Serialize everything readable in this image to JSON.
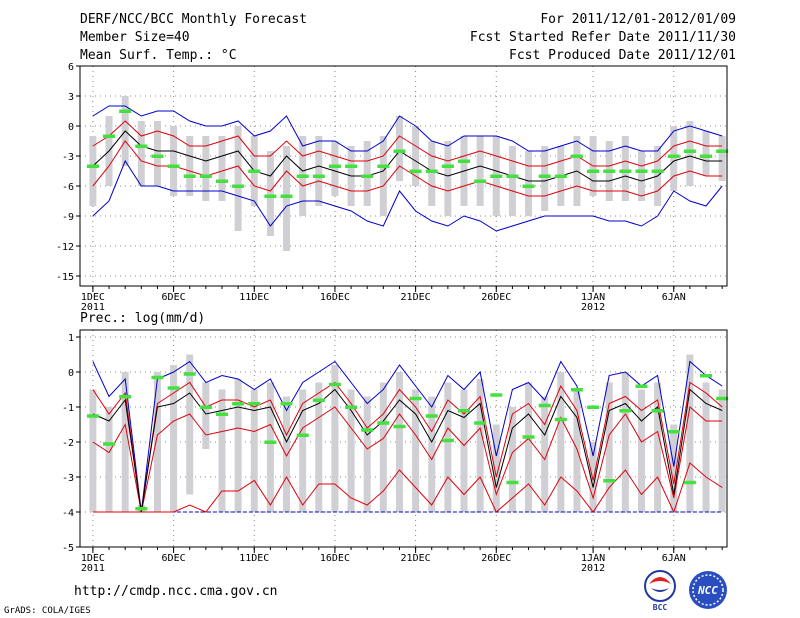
{
  "header": {
    "title": "DERF/NCC/BCC Monthly Forecast",
    "member_size": "Member Size=40",
    "variable": "Mean Surf. Temp.: °C",
    "period": "For 2011/12/01-2012/01/09",
    "started": "Fcst Started Refer Date 2011/11/30",
    "produced": "Fcst Produced Date 2011/12/01"
  },
  "footer": {
    "url": "http://cmdp.ncc.cma.gov.cn",
    "grads": "GrADS: COLA/IGES",
    "logo_left": "BCC",
    "logo_right": "NCC"
  },
  "colors": {
    "box": "#d0d0d4",
    "median": "#000000",
    "inner": "#e0000a",
    "outer": "#0000cc",
    "obs": "#44e040",
    "grid": "#888888"
  },
  "chart_data": [
    {
      "type": "box",
      "title": "Mean Surf. Temp.: °C",
      "xlabel_ticks": [
        {
          "day": 1,
          "label": "1DEC",
          "sub": "2011"
        },
        {
          "day": 6,
          "label": "6DEC",
          "sub": ""
        },
        {
          "day": 11,
          "label": "11DEC",
          "sub": ""
        },
        {
          "day": 16,
          "label": "16DEC",
          "sub": ""
        },
        {
          "day": 21,
          "label": "21DEC",
          "sub": ""
        },
        {
          "day": 26,
          "label": "26DEC",
          "sub": ""
        },
        {
          "day": 32,
          "label": "1JAN",
          "sub": "2012"
        },
        {
          "day": 37,
          "label": "6JAN",
          "sub": ""
        }
      ],
      "xlim": [
        0.2,
        40.3
      ],
      "ylim": [
        -16,
        6
      ],
      "yticks": [
        6,
        3,
        0,
        -3,
        -6,
        -9,
        -12,
        -15
      ],
      "days": [
        1,
        2,
        3,
        4,
        5,
        6,
        7,
        8,
        9,
        10,
        11,
        12,
        13,
        14,
        15,
        16,
        17,
        18,
        19,
        20,
        21,
        22,
        23,
        24,
        25,
        26,
        27,
        28,
        29,
        30,
        31,
        32,
        33,
        34,
        35,
        36,
        37,
        38,
        39,
        40
      ],
      "box_low": [
        -8,
        -6,
        -4,
        -6,
        -6,
        -7,
        -7,
        -7.5,
        -7.5,
        -10.5,
        -8,
        -11,
        -12.5,
        -9,
        -8,
        -7,
        -8,
        -8,
        -9,
        -5.5,
        -6,
        -8,
        -9,
        -8,
        -8,
        -9,
        -9,
        -9,
        -8.5,
        -8,
        -8,
        -7,
        -7.5,
        -7.5,
        -7.5,
        -8,
        -6.5,
        -6,
        -5,
        -5.5
      ],
      "box_high": [
        -1,
        1,
        3,
        0.5,
        0.5,
        0,
        -1,
        -1,
        -1,
        0,
        -1,
        -2.5,
        -2,
        -1,
        -1,
        -1.5,
        -2,
        -1.5,
        -1,
        1,
        0,
        -1.5,
        -1.5,
        -1,
        -1,
        -1,
        -2,
        -2.5,
        -2,
        -2,
        -1,
        -1,
        -1.5,
        -1,
        -2.5,
        -2,
        0,
        0.5,
        -0.5,
        -1
      ],
      "upper_outer": [
        1,
        2,
        2,
        1,
        1.5,
        1.5,
        0.5,
        0,
        0,
        0.5,
        -1,
        -0.5,
        1,
        -2,
        -1.5,
        -1.5,
        -2.5,
        -2.5,
        -1.5,
        1,
        0,
        -1.5,
        -2,
        -1,
        -1,
        -1,
        -1.5,
        -2.5,
        -2.5,
        -2,
        -1.5,
        -2.5,
        -2.5,
        -2,
        -2.5,
        -2.5,
        -0.5,
        0,
        -0.5,
        -1
      ],
      "upper_inner": [
        -2,
        -1,
        0.5,
        -1,
        -0.5,
        -1,
        -2,
        -2,
        -1.5,
        -1,
        -3,
        -3,
        -1.5,
        -3,
        -2.5,
        -3,
        -3.5,
        -3.5,
        -3,
        -1,
        -2,
        -3,
        -3.5,
        -3,
        -2.5,
        -3,
        -3.5,
        -4,
        -4,
        -3.5,
        -3,
        -4,
        -4,
        -3.5,
        -4,
        -3.5,
        -2,
        -1.5,
        -2,
        -2
      ],
      "median": [
        -4,
        -2.5,
        -0.5,
        -2,
        -2.5,
        -2.5,
        -3,
        -3.5,
        -3,
        -2.5,
        -4.5,
        -5,
        -3,
        -4.5,
        -4,
        -4.5,
        -5,
        -5,
        -4.5,
        -2.5,
        -3.5,
        -4.5,
        -5,
        -4.5,
        -4,
        -4.5,
        -5,
        -5.5,
        -5.5,
        -5,
        -4.5,
        -5.5,
        -5.5,
        -5,
        -5.5,
        -5,
        -3.5,
        -3,
        -3.5,
        -3.5
      ],
      "lower_inner": [
        -6,
        -4,
        -1.5,
        -3.5,
        -4,
        -4,
        -4.5,
        -5,
        -4.5,
        -4,
        -6,
        -6.5,
        -4.5,
        -6,
        -5.5,
        -6,
        -6.5,
        -6.5,
        -6,
        -4,
        -5,
        -6,
        -6.5,
        -6,
        -5.5,
        -6,
        -6.5,
        -7,
        -7,
        -6.5,
        -6,
        -6.5,
        -6.5,
        -6.5,
        -7,
        -6.5,
        -5,
        -4.5,
        -5,
        -5
      ],
      "lower_outer": [
        -9,
        -7.5,
        -3.5,
        -6,
        -6,
        -6.5,
        -6.5,
        -6.5,
        -6.5,
        -7,
        -7.5,
        -10,
        -8,
        -7.5,
        -7.5,
        -8,
        -8.5,
        -9.5,
        -10,
        -6.5,
        -8.5,
        -9.5,
        -10,
        -9,
        -9.5,
        -10.5,
        -10,
        -9.5,
        -9,
        -9,
        -9,
        -9,
        -9.5,
        -9.5,
        -10,
        -9,
        -6.5,
        -7.5,
        -8,
        -6
      ],
      "observed": [
        -4,
        -1,
        1.5,
        -2,
        -3,
        -4,
        -5,
        -5,
        -5.5,
        -6,
        -4.5,
        -7,
        -7,
        -5,
        -5,
        -4,
        -4,
        -5,
        -4,
        -2.5,
        -4.5,
        -4.5,
        -4,
        -3.5,
        -5.5,
        -5,
        -5,
        -6,
        -5,
        -5,
        -3,
        -4.5,
        -4.5,
        -4.5,
        -4.5,
        -4.5,
        -3,
        -2.5,
        -3,
        -2.5
      ]
    },
    {
      "type": "box",
      "title": "Prec.: log(mm/d)",
      "xlabel_ticks": [
        {
          "day": 1,
          "label": "1DEC",
          "sub": "2011"
        },
        {
          "day": 6,
          "label": "6DEC",
          "sub": ""
        },
        {
          "day": 11,
          "label": "11DEC",
          "sub": ""
        },
        {
          "day": 16,
          "label": "16DEC",
          "sub": ""
        },
        {
          "day": 21,
          "label": "21DEC",
          "sub": ""
        },
        {
          "day": 26,
          "label": "26DEC",
          "sub": ""
        },
        {
          "day": 32,
          "label": "1JAN",
          "sub": "2012"
        },
        {
          "day": 37,
          "label": "6JAN",
          "sub": ""
        }
      ],
      "xlim": [
        0.2,
        40.3
      ],
      "ylim": [
        -5,
        1.2
      ],
      "yticks": [
        1,
        0,
        -1,
        -2,
        -3,
        -4,
        -5
      ],
      "days": [
        1,
        2,
        3,
        4,
        5,
        6,
        7,
        8,
        9,
        10,
        11,
        12,
        13,
        14,
        15,
        16,
        17,
        18,
        19,
        20,
        21,
        22,
        23,
        24,
        25,
        26,
        27,
        28,
        29,
        30,
        31,
        32,
        33,
        34,
        35,
        36,
        37,
        38,
        39,
        40
      ],
      "box_low": [
        -4,
        -4,
        -4,
        -4,
        -4,
        -4,
        -3.5,
        -2.2,
        -4,
        -4,
        -4,
        -4,
        -4,
        -4,
        -4,
        -4,
        -4,
        -4,
        -4,
        -4,
        -4,
        -4,
        -4,
        -4,
        -4,
        -4,
        -4,
        -4,
        -4,
        -4,
        -4,
        -4,
        -4,
        -4,
        -4,
        -4,
        -4,
        -4,
        -4,
        -4
      ],
      "box_high": [
        -0.5,
        -1,
        0,
        -3.8,
        0,
        0.2,
        0.5,
        -0.3,
        -0.5,
        -0.2,
        -0.5,
        -0.3,
        -0.7,
        -0.5,
        -0.3,
        0.2,
        -0.5,
        -0.7,
        -0.3,
        0,
        -0.5,
        -0.7,
        -0.3,
        -0.5,
        -0.2,
        -1.5,
        -1,
        -0.3,
        -0.7,
        0,
        -0.5,
        -2,
        -0.3,
        0,
        -0.5,
        -0.3,
        -1.5,
        0.5,
        -0.3,
        -0.5
      ],
      "upper_outer": [
        0.3,
        -0.7,
        -0.2,
        -4,
        -0.2,
        0,
        0.3,
        -0.3,
        -0.1,
        -0.2,
        -0.5,
        -0.2,
        -1.1,
        -0.3,
        0,
        0.3,
        -0.3,
        -0.9,
        -0.5,
        0.2,
        -0.4,
        -1,
        -0.1,
        -0.5,
        0,
        -2.4,
        -0.5,
        -0.3,
        -0.8,
        0.3,
        -0.4,
        -2.4,
        -0.1,
        0,
        -0.4,
        -0.1,
        -2.7,
        0.3,
        -0.1,
        -0.4
      ],
      "upper_inner": [
        -0.5,
        -1.2,
        -0.6,
        -4,
        -0.9,
        -0.6,
        -0.3,
        -1,
        -0.8,
        -0.8,
        -1,
        -0.8,
        -1.8,
        -0.9,
        -0.6,
        -0.3,
        -0.9,
        -1.6,
        -1.2,
        -0.5,
        -1,
        -1.7,
        -0.8,
        -1.2,
        -0.7,
        -3,
        -1.2,
        -0.9,
        -1.5,
        -0.4,
        -1.1,
        -3.1,
        -0.9,
        -0.7,
        -1.1,
        -0.8,
        -3.2,
        -0.3,
        -0.6,
        -1
      ],
      "median": [
        -1.2,
        -1.4,
        -0.8,
        -4,
        -1,
        -0.9,
        -0.6,
        -1.2,
        -1.1,
        -1,
        -1.1,
        -1,
        -2,
        -1.1,
        -0.9,
        -0.5,
        -1.1,
        -1.8,
        -1.4,
        -0.8,
        -1.2,
        -2,
        -1.1,
        -1.3,
        -0.9,
        -3.3,
        -1.6,
        -1.2,
        -1.8,
        -0.7,
        -1.3,
        -3.3,
        -1.1,
        -0.9,
        -1.4,
        -1,
        -3.5,
        -0.5,
        -0.9,
        -1.1
      ],
      "lower_inner": [
        -2,
        -2.3,
        -1.5,
        -4,
        -1.8,
        -1.4,
        -1.2,
        -1.8,
        -1.7,
        -1.6,
        -1.7,
        -1.5,
        -2.4,
        -1.6,
        -1.3,
        -1,
        -1.6,
        -2.2,
        -1.9,
        -1.2,
        -1.8,
        -2.5,
        -1.6,
        -2.1,
        -1.6,
        -3.5,
        -2.3,
        -1.9,
        -2.5,
        -1.3,
        -2.2,
        -3.6,
        -1.8,
        -1.2,
        -2,
        -1.7,
        -3.6,
        -1,
        -1.4,
        -1.4
      ],
      "lower_outer": [
        -4,
        -4,
        -4,
        -4,
        -4,
        -4,
        -3.8,
        -4,
        -3.4,
        -3.4,
        -3.1,
        -3.8,
        -3,
        -3.8,
        -3.2,
        -3.2,
        -3.6,
        -3.8,
        -3.4,
        -2.8,
        -3.3,
        -3.8,
        -3,
        -3.5,
        -3,
        -4,
        -3.6,
        -3.2,
        -3.8,
        -3,
        -3.4,
        -4,
        -3.3,
        -2.8,
        -3.5,
        -3,
        -4,
        -2.6,
        -3,
        -3.3
      ],
      "bottom_line": [
        -4,
        -4,
        -4,
        -4,
        -4,
        -4,
        -4,
        -4,
        -4,
        -4,
        -4,
        -4,
        -4,
        -4,
        -4,
        -4,
        -4,
        -4,
        -4,
        -4,
        -4,
        -4,
        -4,
        -4,
        -4,
        -4,
        -4,
        -4,
        -4,
        -4,
        -4,
        -4,
        -4,
        -4,
        -4,
        -4,
        -4,
        -4,
        -4,
        -4
      ],
      "observed": [
        -1.25,
        -2.05,
        -0.7,
        -3.9,
        -0.15,
        -0.45,
        -0.05,
        -1,
        -1.2,
        -0.9,
        -0.9,
        -2,
        -0.9,
        -1.8,
        -0.8,
        -0.35,
        -1,
        -1.65,
        -1.45,
        -1.55,
        -0.75,
        -1.25,
        -1.95,
        -1.1,
        -1.45,
        -0.65,
        -3.15,
        -1.85,
        -0.95,
        -1.35,
        -0.5,
        -1,
        -3.1,
        -1.1,
        -0.4,
        -1.1,
        -1.7,
        -3.15,
        -0.1,
        -0.75
      ]
    }
  ]
}
